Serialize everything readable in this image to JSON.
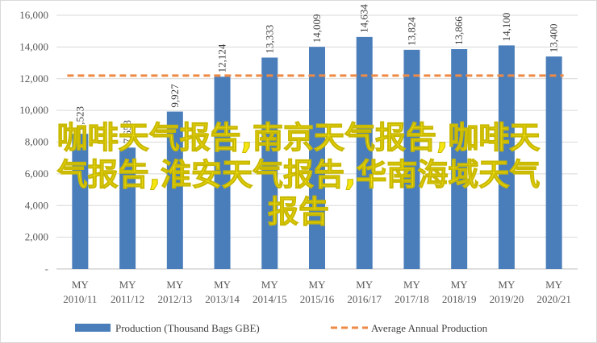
{
  "chart_data": {
    "type": "bar",
    "categories": [
      "MY 2010/11",
      "MY 2011/12",
      "MY 2012/13",
      "MY 2013/14",
      "MY 2014/15",
      "MY 2015/16",
      "MY 2016/17",
      "MY 2017/18",
      "MY 2018/19",
      "MY 2019/20",
      "MY 2020/21"
    ],
    "category_lines": [
      [
        "MY",
        "2010/11"
      ],
      [
        "MY",
        "2011/12"
      ],
      [
        "MY",
        "2012/13"
      ],
      [
        "MY",
        "2013/14"
      ],
      [
        "MY",
        "2014/15"
      ],
      [
        "MY",
        "2015/16"
      ],
      [
        "MY",
        "2016/17"
      ],
      [
        "MY",
        "2017/18"
      ],
      [
        "MY",
        "2018/19"
      ],
      [
        "MY",
        "2019/20"
      ],
      [
        "MY",
        "2020/21"
      ]
    ],
    "series": [
      {
        "name": "Production (Thousand Bags GBE)",
        "type": "bar",
        "color": "#4a7ebb",
        "values": [
          8523,
          7653,
          9927,
          12124,
          13333,
          14009,
          14634,
          13824,
          13866,
          14100,
          13400
        ],
        "labels": [
          "8,523",
          "7,653",
          "9,927",
          "12,124",
          "13,333",
          "14,009",
          "14,634",
          "13,824",
          "13,866",
          "14,100",
          "13,400"
        ]
      },
      {
        "name": "Average Annual Production",
        "type": "line",
        "style": "dashed",
        "color": "#ed8a45",
        "value": 12200
      }
    ],
    "ylim": [
      0,
      16000
    ],
    "yticks": [
      0,
      2000,
      4000,
      6000,
      8000,
      10000,
      12000,
      14000,
      16000
    ],
    "ytick_labels": [
      "-",
      "2,000",
      "4,000",
      "6,000",
      "8,000",
      "10,000",
      "12,000",
      "14,000",
      "16,000"
    ],
    "grid": true,
    "legend_position": "bottom",
    "title": "",
    "xlabel": "",
    "ylabel": ""
  },
  "overlay_text": "咖啡天气报告,南京天气报告,咖啡天\n气报告,淮安天气报告,华南海域天气\n报告"
}
